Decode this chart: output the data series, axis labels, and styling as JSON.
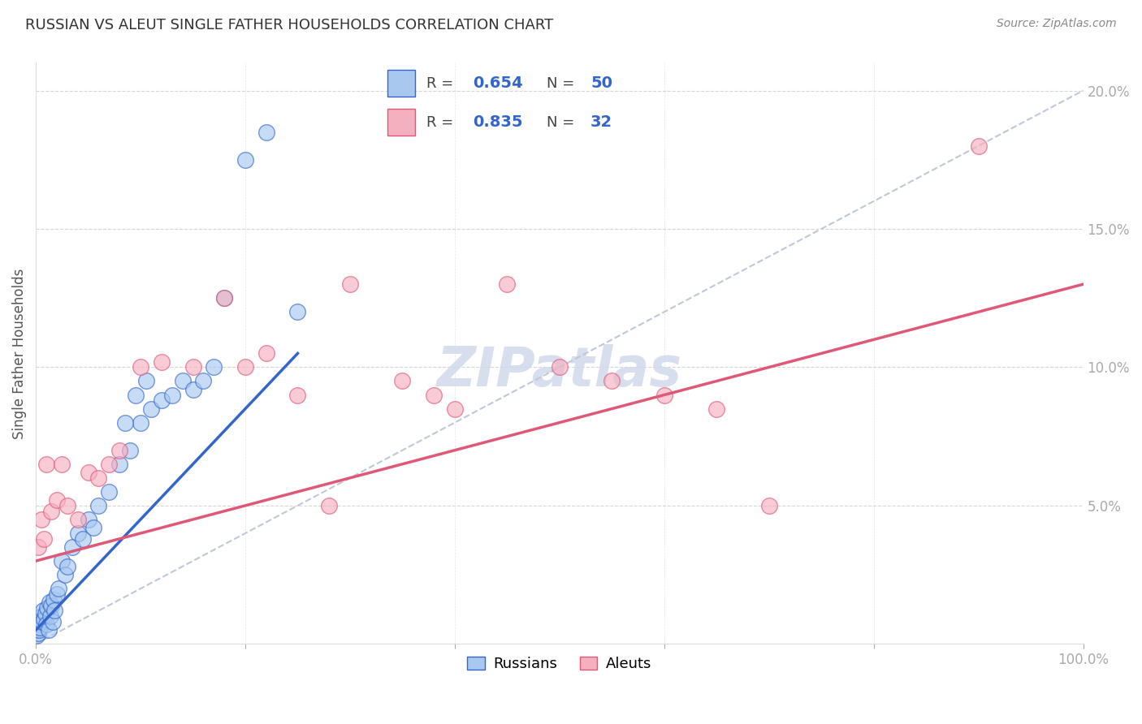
{
  "title": "RUSSIAN VS ALEUT SINGLE FATHER HOUSEHOLDS CORRELATION CHART",
  "source": "Source: ZipAtlas.com",
  "ylabel": "Single Father Households",
  "xlim": [
    0,
    100
  ],
  "ylim": [
    0,
    21
  ],
  "x_ticks": [
    0,
    20,
    40,
    60,
    80,
    100
  ],
  "x_tick_labels": [
    "0.0%",
    "",
    "",
    "",
    "",
    "100.0%"
  ],
  "y_ticks": [
    0,
    5,
    10,
    15,
    20
  ],
  "y_tick_labels": [
    "",
    "5.0%",
    "10.0%",
    "15.0%",
    "20.0%"
  ],
  "russian_R": 0.654,
  "russian_N": 50,
  "aleut_R": 0.835,
  "aleut_N": 32,
  "russian_color": "#a8c8f0",
  "aleut_color": "#f5b0c0",
  "russian_line_color": "#3366cc",
  "aleut_line_color": "#e05878",
  "diagonal_color": "#c0c8d8",
  "watermark": "ZIPatlas",
  "russian_x": [
    0.1,
    0.15,
    0.2,
    0.25,
    0.3,
    0.35,
    0.4,
    0.5,
    0.6,
    0.7,
    0.8,
    0.9,
    1.0,
    1.1,
    1.2,
    1.3,
    1.4,
    1.5,
    1.6,
    1.7,
    1.8,
    2.0,
    2.2,
    2.5,
    2.8,
    3.0,
    3.5,
    4.0,
    4.5,
    5.0,
    5.5,
    6.0,
    7.0,
    8.0,
    9.0,
    10.0,
    11.0,
    12.0,
    13.0,
    14.0,
    15.0,
    16.0,
    17.0,
    18.0,
    20.0,
    22.0,
    25.0,
    8.5,
    9.5,
    10.5
  ],
  "russian_y": [
    0.3,
    0.5,
    0.4,
    0.7,
    0.5,
    0.8,
    0.6,
    1.0,
    0.8,
    1.2,
    0.9,
    1.1,
    0.7,
    1.3,
    0.5,
    1.5,
    1.0,
    1.4,
    0.8,
    1.6,
    1.2,
    1.8,
    2.0,
    3.0,
    2.5,
    2.8,
    3.5,
    4.0,
    3.8,
    4.5,
    4.2,
    5.0,
    5.5,
    6.5,
    7.0,
    8.0,
    8.5,
    8.8,
    9.0,
    9.5,
    9.2,
    9.5,
    10.0,
    12.5,
    17.5,
    18.5,
    12.0,
    8.0,
    9.0,
    9.5
  ],
  "aleut_x": [
    0.2,
    0.5,
    0.8,
    1.0,
    1.5,
    2.0,
    2.5,
    3.0,
    4.0,
    5.0,
    6.0,
    7.0,
    8.0,
    10.0,
    12.0,
    15.0,
    18.0,
    20.0,
    22.0,
    25.0,
    28.0,
    30.0,
    35.0,
    38.0,
    40.0,
    45.0,
    50.0,
    55.0,
    60.0,
    65.0,
    70.0,
    90.0
  ],
  "aleut_y": [
    3.5,
    4.5,
    3.8,
    6.5,
    4.8,
    5.2,
    6.5,
    5.0,
    4.5,
    6.2,
    6.0,
    6.5,
    7.0,
    10.0,
    10.2,
    10.0,
    12.5,
    10.0,
    10.5,
    9.0,
    5.0,
    13.0,
    9.5,
    9.0,
    8.5,
    13.0,
    10.0,
    9.5,
    9.0,
    8.5,
    5.0,
    18.0
  ],
  "russian_line_x": [
    0,
    25
  ],
  "russian_line_y": [
    0.5,
    10.5
  ],
  "aleut_line_x": [
    0,
    100
  ],
  "aleut_line_y": [
    3.0,
    13.0
  ]
}
